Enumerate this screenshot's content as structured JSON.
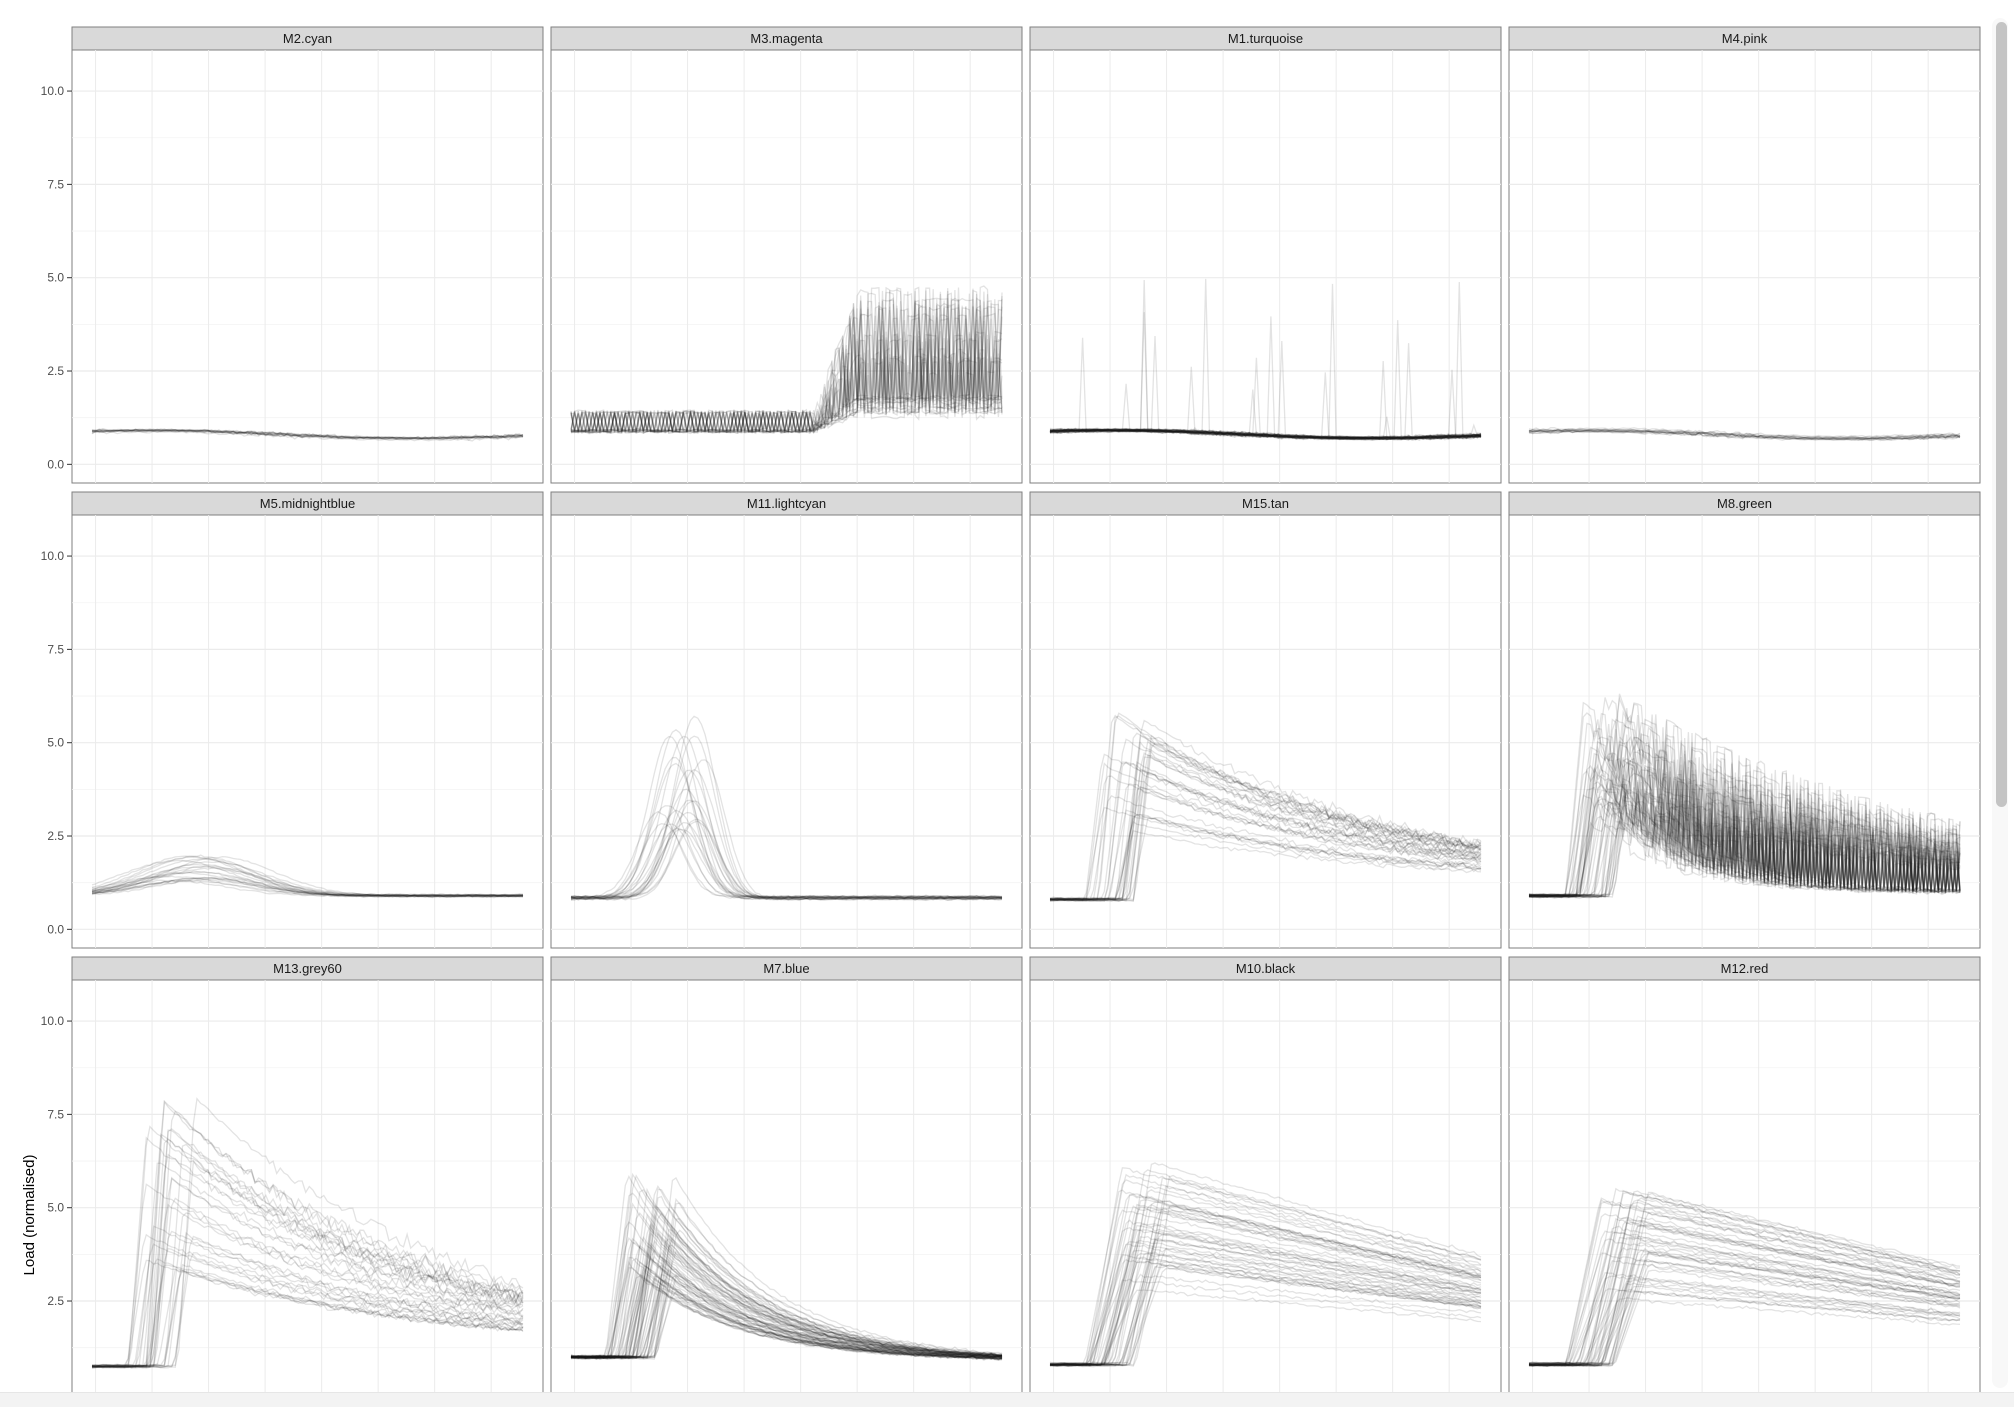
{
  "y_axis_title": "Load (normalised)",
  "chart_data": {
    "type": "line",
    "facet_layout": "wrap",
    "grid": true,
    "y_label": "Load (normalised)",
    "x_label": "",
    "ylim": [
      -0.5,
      11.1
    ],
    "y_ticks": [
      0.0,
      2.5,
      5.0,
      7.5,
      10.0
    ],
    "y_tick_labels": [
      "0.0",
      "2.5",
      "5.0",
      "7.5",
      "10.0"
    ],
    "x_ticks_shown": false,
    "line_color": "#1a1a1a",
    "line_opacity": 0.12,
    "strip_fill": "#d9d9d9",
    "panels": [
      {
        "label": "M2.cyan",
        "profile": "flat",
        "n": 14,
        "base": 0.85,
        "peak": 0.9,
        "spread": 0.15
      },
      {
        "label": "M3.magenta",
        "profile": "late",
        "n": 28,
        "base": 0.9,
        "peak": 7.3,
        "spread": 0.6
      },
      {
        "label": "M1.turquoise",
        "profile": "flat",
        "n": 50,
        "base": 0.85,
        "peak": 5.0,
        "spread": 0.2
      },
      {
        "label": "M4.pink",
        "profile": "flat",
        "n": 14,
        "base": 0.85,
        "peak": 1.0,
        "spread": 0.2
      },
      {
        "label": "M5.midnightblue",
        "profile": "low",
        "n": 22,
        "base": 0.9,
        "peak": 3.3,
        "spread": 0.3
      },
      {
        "label": "M11.lightcyan",
        "profile": "spike",
        "n": 24,
        "base": 0.85,
        "peak": 5.8,
        "spread": 1.1
      },
      {
        "label": "M15.tan",
        "profile": "decay",
        "n": 34,
        "base": 0.8,
        "peak": 5.9,
        "spread": 1.0
      },
      {
        "label": "M8.green",
        "profile": "mixed",
        "n": 50,
        "base": 0.9,
        "peak": 6.2,
        "spread": 1.1
      },
      {
        "label": "M13.grey60",
        "profile": "decay",
        "n": 34,
        "base": 0.75,
        "peak": 8.0,
        "spread": 1.2
      },
      {
        "label": "M7.blue",
        "profile": "early",
        "n": 70,
        "base": 1.0,
        "peak": 6.1,
        "spread": 1.0
      },
      {
        "label": "M10.black",
        "profile": "plateau",
        "n": 50,
        "base": 0.8,
        "peak": 6.4,
        "spread": 1.2
      },
      {
        "label": "M12.red",
        "profile": "plateau",
        "n": 50,
        "base": 0.8,
        "peak": 5.5,
        "spread": 1.0
      }
    ]
  }
}
